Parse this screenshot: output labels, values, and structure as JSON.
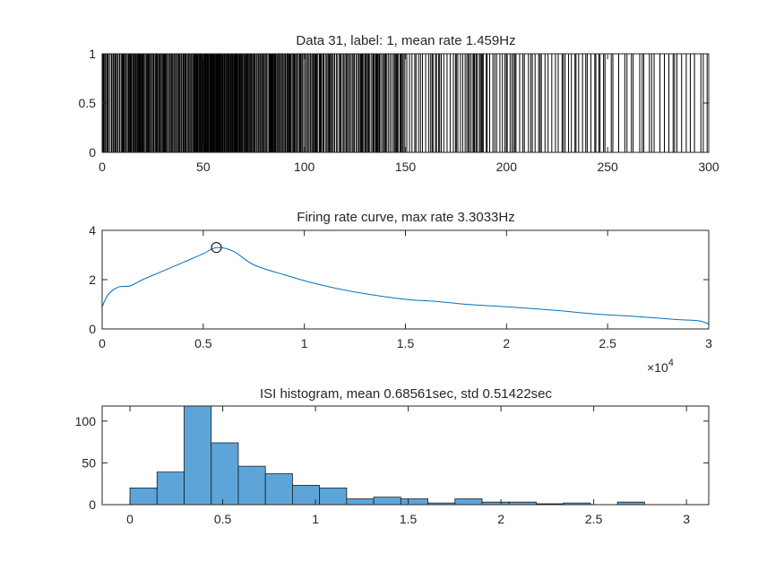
{
  "chart_data": [
    {
      "type": "raster",
      "title": "Data 31, label: 1, mean rate 1.459Hz",
      "xlim": [
        0,
        300
      ],
      "ylim": [
        0,
        1
      ],
      "xticks": [
        0,
        50,
        100,
        150,
        200,
        250,
        300
      ],
      "xtick_labels": [
        "0",
        "50",
        "100",
        "150",
        "200",
        "250",
        "300"
      ],
      "yticks": [
        0,
        0.5,
        1
      ],
      "ytick_labels": [
        "0",
        "0.5",
        "1"
      ],
      "spike_density": [
        {
          "from": 0,
          "to": 10,
          "rate": 2.0
        },
        {
          "from": 10,
          "to": 45,
          "rate": 2.4
        },
        {
          "from": 45,
          "to": 70,
          "rate": 3.2
        },
        {
          "from": 70,
          "to": 100,
          "rate": 2.5
        },
        {
          "from": 100,
          "to": 150,
          "rate": 1.8
        },
        {
          "from": 150,
          "to": 200,
          "rate": 1.0
        },
        {
          "from": 200,
          "to": 250,
          "rate": 0.8
        },
        {
          "from": 250,
          "to": 300,
          "rate": 0.5
        }
      ],
      "color": "#000000"
    },
    {
      "type": "line",
      "title": "Firing rate curve, max rate 3.3033Hz",
      "xlim": [
        0,
        30000
      ],
      "ylim": [
        0,
        4
      ],
      "xticks": [
        0,
        5000,
        10000,
        15000,
        20000,
        25000,
        30000
      ],
      "xtick_labels": [
        "0",
        "0.5",
        "1",
        "1.5",
        "2",
        "2.5",
        "3"
      ],
      "yticks": [
        0,
        2,
        4
      ],
      "ytick_labels": [
        "0",
        "2",
        "4"
      ],
      "exponent_label": "×10",
      "exponent_power": "4",
      "x": [
        0,
        300,
        800,
        1400,
        2000,
        3000,
        4000,
        5000,
        5650,
        6500,
        7500,
        9000,
        10500,
        12500,
        15000,
        16500,
        18000,
        20000,
        22500,
        24500,
        26500,
        28500,
        29500,
        30000
      ],
      "y": [
        0.9,
        1.4,
        1.7,
        1.75,
        2.0,
        2.35,
        2.7,
        3.05,
        3.3033,
        3.15,
        2.6,
        2.2,
        1.85,
        1.5,
        1.2,
        1.12,
        1.0,
        0.9,
        0.75,
        0.6,
        0.5,
        0.38,
        0.33,
        0.2
      ],
      "marker": {
        "x": 5650,
        "y": 3.3033
      },
      "color": "#0072BD"
    },
    {
      "type": "bar",
      "title": "ISI histogram, mean 0.68561sec, std 0.51422sec",
      "xlim": [
        -0.15,
        3.12
      ],
      "ylim": [
        0,
        118
      ],
      "xticks": [
        0,
        0.5,
        1,
        1.5,
        2,
        2.5,
        3
      ],
      "xtick_labels": [
        "0",
        "0.5",
        "1",
        "1.5",
        "2",
        "2.5",
        "3"
      ],
      "yticks": [
        0,
        50,
        100
      ],
      "ytick_labels": [
        "0",
        "50",
        "100"
      ],
      "bin_edges": [
        0,
        0.146,
        0.292,
        0.438,
        0.584,
        0.73,
        0.876,
        1.022,
        1.168,
        1.314,
        1.46,
        1.606,
        1.752,
        1.898,
        2.044,
        2.19,
        2.336,
        2.482,
        2.628,
        2.774,
        2.92
      ],
      "counts": [
        20,
        39,
        120,
        74,
        46,
        37,
        23,
        20,
        7,
        9,
        7,
        2,
        7,
        3,
        3,
        1,
        2,
        0,
        3,
        0
      ],
      "color": "#4DBEEE"
    }
  ]
}
